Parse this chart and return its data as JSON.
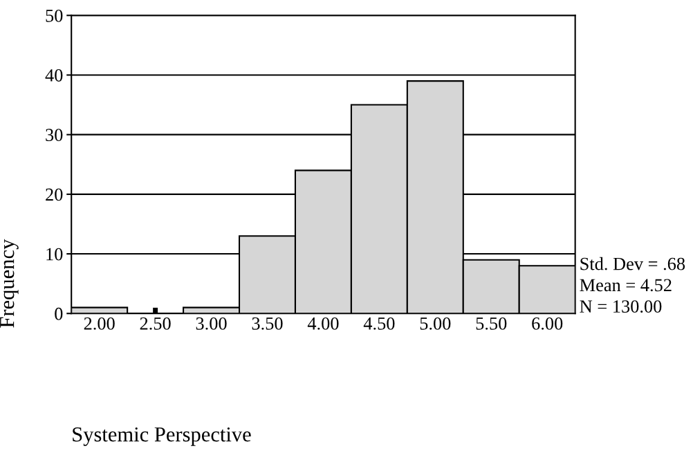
{
  "chart_data": {
    "type": "histogram",
    "bins": [
      1.75,
      2.25,
      2.75,
      3.25,
      3.75,
      4.25,
      4.75,
      5.25,
      5.75,
      6.25
    ],
    "values": [
      1,
      0,
      1,
      13,
      24,
      35,
      39,
      9,
      8
    ],
    "color": "#d6d6d6",
    "xlabel": "Systemic Perspective",
    "ylabel": "Frequency",
    "xlim": [
      1.75,
      6.25
    ],
    "ylim": [
      0,
      50
    ],
    "xticks": [
      {
        "value": 2,
        "label": "2.00"
      },
      {
        "value": 2.5,
        "label": "2.50"
      },
      {
        "value": 3,
        "label": "3.00"
      },
      {
        "value": 3.5,
        "label": "3.50"
      },
      {
        "value": 4,
        "label": "4.00"
      },
      {
        "value": 4.5,
        "label": "4.50"
      },
      {
        "value": 5,
        "label": "5.00"
      },
      {
        "value": 5.5,
        "label": "5.50"
      },
      {
        "value": 6,
        "label": "6.00"
      }
    ],
    "yticks": [
      0,
      10,
      20,
      30,
      40,
      50
    ],
    "grid": "y",
    "annotations": [
      "Std. Dev = .68",
      "Mean = 4.52",
      "N = 130.00"
    ]
  }
}
